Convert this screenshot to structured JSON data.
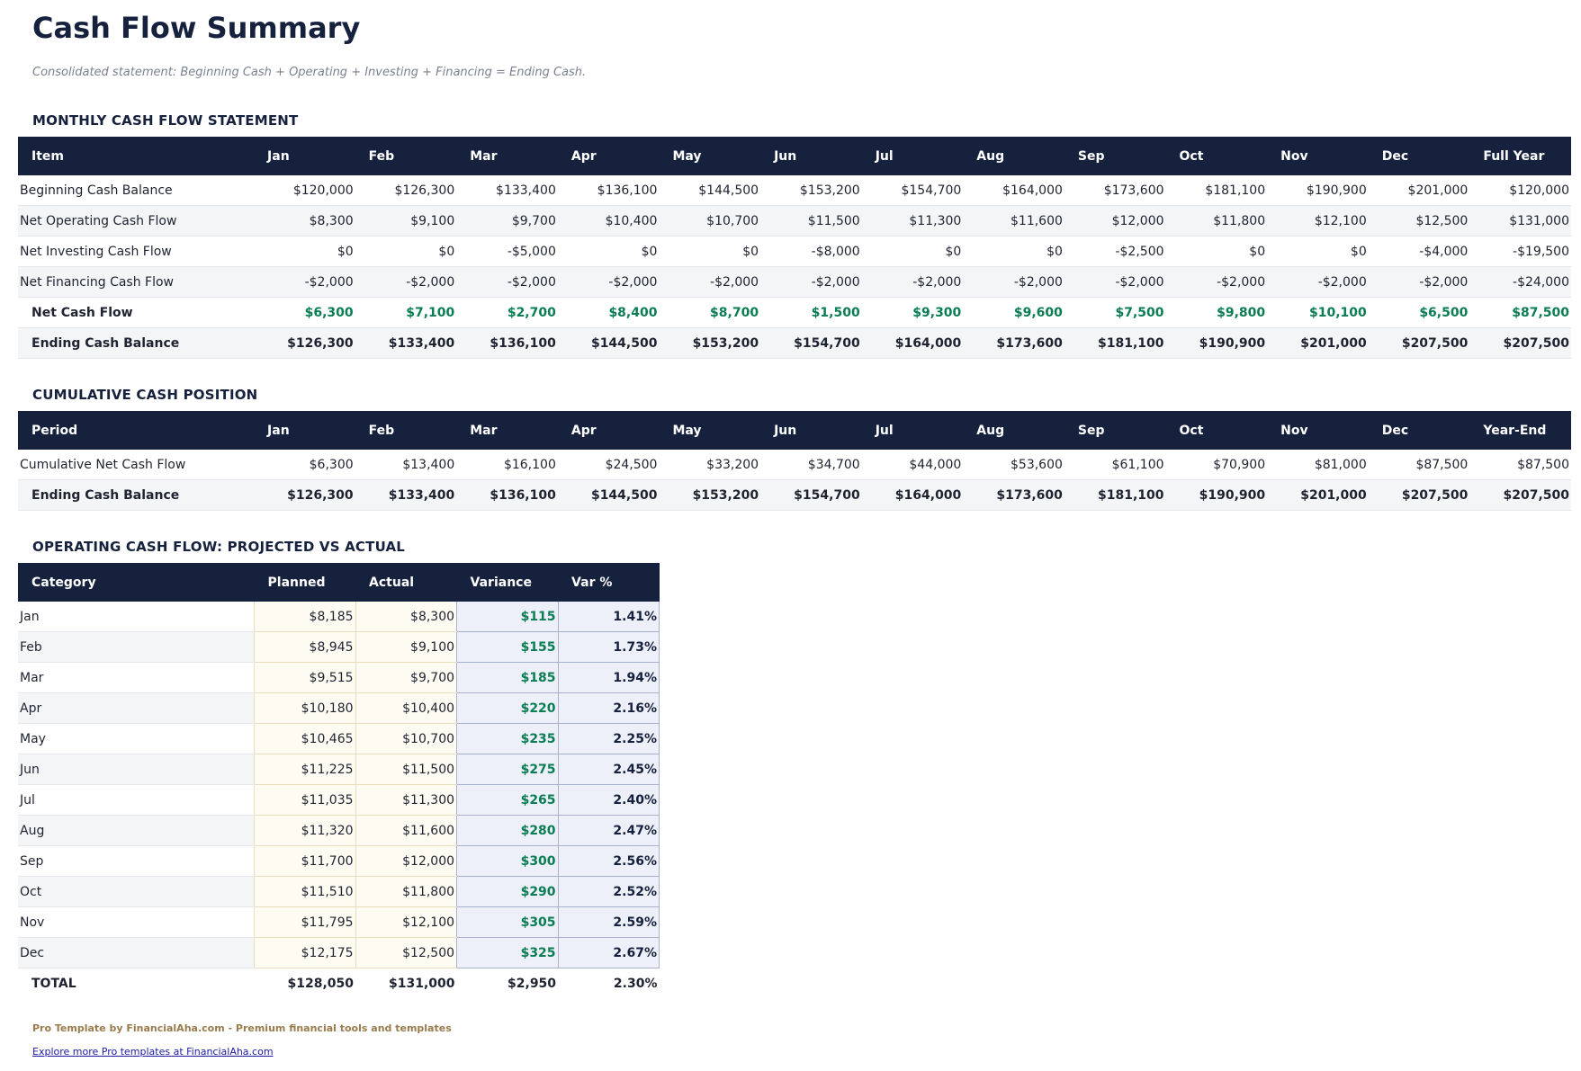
{
  "title": "Cash Flow Summary",
  "subtitle": "Consolidated statement: Beginning Cash + Operating + Investing + Financing = Ending Cash.",
  "monthly": {
    "heading": "MONTHLY CASH FLOW STATEMENT",
    "columns": [
      "Item",
      "Jan",
      "Feb",
      "Mar",
      "Apr",
      "May",
      "Jun",
      "Jul",
      "Aug",
      "Sep",
      "Oct",
      "Nov",
      "Dec",
      "Full Year"
    ],
    "rows": [
      {
        "label": "Beginning Cash Balance",
        "values": [
          "$120,000",
          "$126,300",
          "$133,400",
          "$136,100",
          "$144,500",
          "$153,200",
          "$154,700",
          "$164,000",
          "$173,600",
          "$181,100",
          "$190,900",
          "$201,000",
          "$120,000"
        ]
      },
      {
        "label": "Net Operating Cash Flow",
        "values": [
          "$8,300",
          "$9,100",
          "$9,700",
          "$10,400",
          "$10,700",
          "$11,500",
          "$11,300",
          "$11,600",
          "$12,000",
          "$11,800",
          "$12,100",
          "$12,500",
          "$131,000"
        ]
      },
      {
        "label": "Net Investing Cash Flow",
        "values": [
          "$0",
          "$0",
          "-$5,000",
          "$0",
          "$0",
          "-$8,000",
          "$0",
          "$0",
          "-$2,500",
          "$0",
          "$0",
          "-$4,000",
          "-$19,500"
        ]
      },
      {
        "label": "Net Financing Cash Flow",
        "values": [
          "-$2,000",
          "-$2,000",
          "-$2,000",
          "-$2,000",
          "-$2,000",
          "-$2,000",
          "-$2,000",
          "-$2,000",
          "-$2,000",
          "-$2,000",
          "-$2,000",
          "-$2,000",
          "-$24,000"
        ]
      },
      {
        "label": "Net Cash Flow",
        "bold": true,
        "green": true,
        "values": [
          "$6,300",
          "$7,100",
          "$2,700",
          "$8,400",
          "$8,700",
          "$1,500",
          "$9,300",
          "$9,600",
          "$7,500",
          "$9,800",
          "$10,100",
          "$6,500",
          "$87,500"
        ]
      },
      {
        "label": "Ending Cash Balance",
        "bold": true,
        "values": [
          "$126,300",
          "$133,400",
          "$136,100",
          "$144,500",
          "$153,200",
          "$154,700",
          "$164,000",
          "$173,600",
          "$181,100",
          "$190,900",
          "$201,000",
          "$207,500",
          "$207,500"
        ]
      }
    ]
  },
  "cumulative": {
    "heading": "CUMULATIVE CASH POSITION",
    "columns": [
      "Period",
      "Jan",
      "Feb",
      "Mar",
      "Apr",
      "May",
      "Jun",
      "Jul",
      "Aug",
      "Sep",
      "Oct",
      "Nov",
      "Dec",
      "Year-End"
    ],
    "rows": [
      {
        "label": "Cumulative Net Cash Flow",
        "values": [
          "$6,300",
          "$13,400",
          "$16,100",
          "$24,500",
          "$33,200",
          "$34,700",
          "$44,000",
          "$53,600",
          "$61,100",
          "$70,900",
          "$81,000",
          "$87,500",
          "$87,500"
        ]
      },
      {
        "label": "Ending Cash Balance",
        "bold": true,
        "values": [
          "$126,300",
          "$133,400",
          "$136,100",
          "$144,500",
          "$153,200",
          "$154,700",
          "$164,000",
          "$173,600",
          "$181,100",
          "$190,900",
          "$201,000",
          "$207,500",
          "$207,500"
        ]
      }
    ]
  },
  "operating": {
    "heading": "OPERATING CASH FLOW: PROJECTED VS ACTUAL",
    "columns": [
      "Category",
      "Planned",
      "Actual",
      "Variance",
      "Var %"
    ],
    "rows": [
      {
        "label": "Jan",
        "values": [
          "$8,185",
          "$8,300",
          "$115",
          "1.41%"
        ]
      },
      {
        "label": "Feb",
        "values": [
          "$8,945",
          "$9,100",
          "$155",
          "1.73%"
        ]
      },
      {
        "label": "Mar",
        "values": [
          "$9,515",
          "$9,700",
          "$185",
          "1.94%"
        ]
      },
      {
        "label": "Apr",
        "values": [
          "$10,180",
          "$10,400",
          "$220",
          "2.16%"
        ]
      },
      {
        "label": "May",
        "values": [
          "$10,465",
          "$10,700",
          "$235",
          "2.25%"
        ]
      },
      {
        "label": "Jun",
        "values": [
          "$11,225",
          "$11,500",
          "$275",
          "2.45%"
        ]
      },
      {
        "label": "Jul",
        "values": [
          "$11,035",
          "$11,300",
          "$265",
          "2.40%"
        ]
      },
      {
        "label": "Aug",
        "values": [
          "$11,320",
          "$11,600",
          "$280",
          "2.47%"
        ]
      },
      {
        "label": "Sep",
        "values": [
          "$11,700",
          "$12,000",
          "$300",
          "2.56%"
        ]
      },
      {
        "label": "Oct",
        "values": [
          "$11,510",
          "$11,800",
          "$290",
          "2.52%"
        ]
      },
      {
        "label": "Nov",
        "values": [
          "$11,795",
          "$12,100",
          "$305",
          "2.59%"
        ]
      },
      {
        "label": "Dec",
        "values": [
          "$12,175",
          "$12,500",
          "$325",
          "2.67%"
        ]
      }
    ],
    "total": {
      "label": "TOTAL",
      "values": [
        "$128,050",
        "$131,000",
        "$2,950",
        "2.30%"
      ]
    }
  },
  "footer": {
    "credit": "Pro Template by FinancialAha.com - Premium financial tools and templates",
    "link": "Explore more Pro templates at FinancialAha.com"
  },
  "colors": {
    "navy": "#16213e",
    "green": "#0b7d53",
    "gold": "#9a7b4c"
  }
}
